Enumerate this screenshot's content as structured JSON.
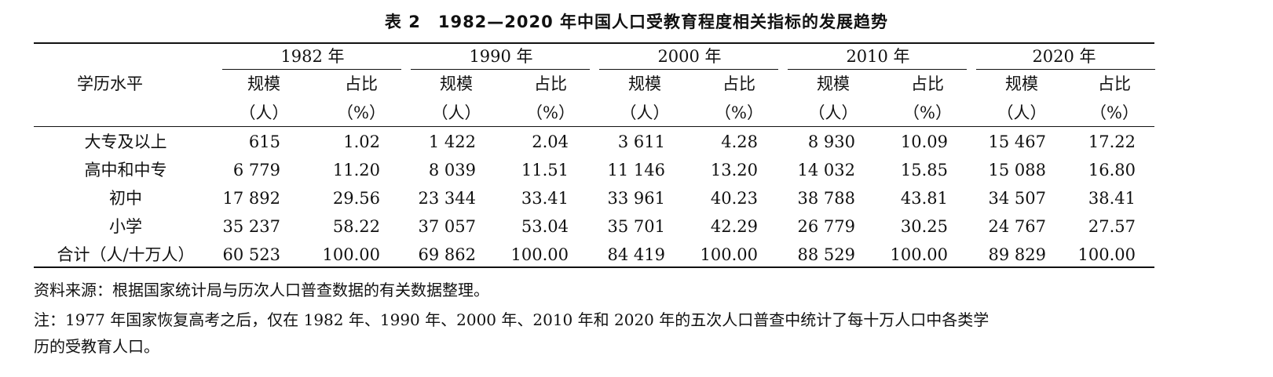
{
  "title": "表 2　1982—2020 年中国人口受教育程度相关指标的发展趋势",
  "table": {
    "row_header": "学历水平",
    "years": [
      "1982 年",
      "1990 年",
      "2000 年",
      "2010 年",
      "2020 年"
    ],
    "sub_headers": {
      "scale": "规模",
      "share": "占比",
      "scale_unit": "（人）",
      "share_unit": "（%）"
    },
    "rows": [
      {
        "label": "大专及以上",
        "cells": [
          "615",
          "1.02",
          "1 422",
          "2.04",
          "3 611",
          "4.28",
          "8 930",
          "10.09",
          "15 467",
          "17.22"
        ]
      },
      {
        "label": "高中和中专",
        "cells": [
          "6 779",
          "11.20",
          "8 039",
          "11.51",
          "11 146",
          "13.20",
          "14 032",
          "15.85",
          "15 088",
          "16.80"
        ]
      },
      {
        "label": "初中",
        "cells": [
          "17 892",
          "29.56",
          "23 344",
          "33.41",
          "33 961",
          "40.23",
          "38 788",
          "43.81",
          "34 507",
          "38.41"
        ]
      },
      {
        "label": "小学",
        "cells": [
          "35 237",
          "58.22",
          "37 057",
          "53.04",
          "35 701",
          "42.29",
          "26 779",
          "30.25",
          "24 767",
          "27.57"
        ]
      },
      {
        "label": "合计（人/十万人）",
        "cells": [
          "60 523",
          "100.00",
          "69 862",
          "100.00",
          "84 419",
          "100.00",
          "88 529",
          "100.00",
          "89 829",
          "100.00"
        ]
      }
    ]
  },
  "source_note": "资料来源：根据国家统计局与历次人口普查数据的有关数据整理。",
  "note_line1": "注：1977 年国家恢复高考之后，仅在 1982 年、1990 年、2000 年、2010 年和 2020 年的五次人口普查中统计了每十万人口中各类学",
  "note_line2": "历的受教育人口。"
}
